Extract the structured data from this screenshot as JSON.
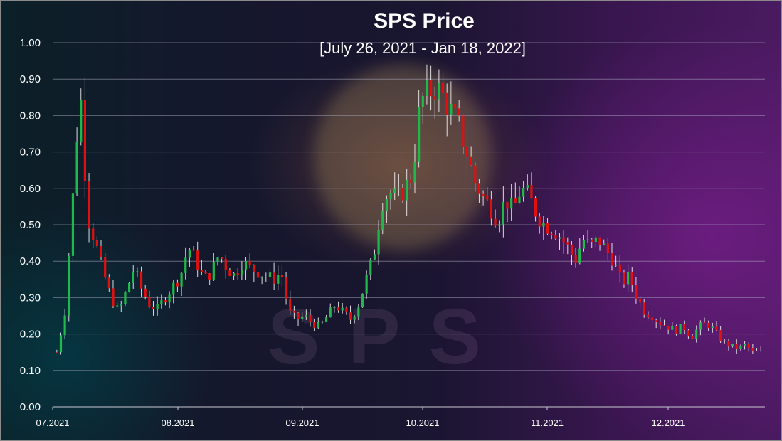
{
  "chart_data": {
    "type": "candlestick",
    "title": "SPS Price",
    "subtitle": "[July 26, 2021 - Jan 18, 2022]",
    "ylim": [
      0,
      1.0
    ],
    "y_ticks": [
      "0.00",
      "0.10",
      "0.20",
      "0.30",
      "0.40",
      "0.50",
      "0.60",
      "0.70",
      "0.80",
      "0.90",
      "1.00"
    ],
    "x_ticks": [
      "07.2021",
      "08.2021",
      "09.2021",
      "10.2021",
      "11.2021",
      "12.2021"
    ],
    "grid": "horizontal",
    "colors": {
      "up": "#1fb84a",
      "down": "#e01010",
      "wick": "#ffffff",
      "text": "#ffffff",
      "grid": "#8a8a9a"
    },
    "background_watermark": "SPS",
    "series": [
      {
        "name": "",
        "close_path": [
          0.15,
          0.25,
          0.55,
          0.88,
          0.52,
          0.45,
          0.37,
          0.3,
          0.26,
          0.32,
          0.38,
          0.32,
          0.28,
          0.27,
          0.3,
          0.33,
          0.36,
          0.44,
          0.4,
          0.35,
          0.37,
          0.42,
          0.38,
          0.36,
          0.4,
          0.38,
          0.37,
          0.36,
          0.35,
          0.37,
          0.26,
          0.24,
          0.25,
          0.23,
          0.22,
          0.25,
          0.28,
          0.26,
          0.24,
          0.28,
          0.35,
          0.42,
          0.56,
          0.59,
          0.57,
          0.6,
          0.64,
          0.84,
          0.86,
          0.88,
          0.85,
          0.81,
          0.77,
          0.7,
          0.62,
          0.58,
          0.55,
          0.51,
          0.57,
          0.54,
          0.6,
          0.58,
          0.53,
          0.5,
          0.49,
          0.47,
          0.44,
          0.4,
          0.46,
          0.44,
          0.46,
          0.43,
          0.4,
          0.34,
          0.36,
          0.3,
          0.26,
          0.25,
          0.23,
          0.22,
          0.21,
          0.22,
          0.19,
          0.22,
          0.23,
          0.21,
          0.18,
          0.17,
          0.16,
          0.17,
          0.15,
          0.15
        ]
      }
    ]
  }
}
